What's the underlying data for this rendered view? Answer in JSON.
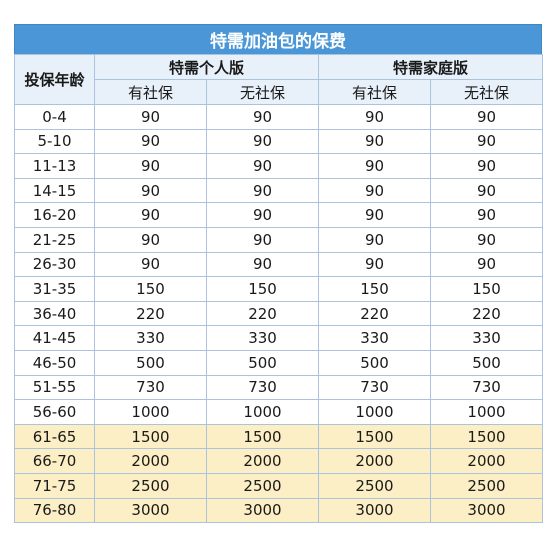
{
  "title": "特需加油包的保费",
  "header": {
    "age_label": "投保年龄",
    "group_personal": "特需个人版",
    "group_family": "特需家庭版",
    "with_social": "有社保",
    "without_social": "无社保"
  },
  "rows": [
    {
      "age": "0-4",
      "v": [
        "90",
        "90",
        "90",
        "90"
      ],
      "highlight": false
    },
    {
      "age": "5-10",
      "v": [
        "90",
        "90",
        "90",
        "90"
      ],
      "highlight": false
    },
    {
      "age": "11-13",
      "v": [
        "90",
        "90",
        "90",
        "90"
      ],
      "highlight": false
    },
    {
      "age": "14-15",
      "v": [
        "90",
        "90",
        "90",
        "90"
      ],
      "highlight": false
    },
    {
      "age": "16-20",
      "v": [
        "90",
        "90",
        "90",
        "90"
      ],
      "highlight": false
    },
    {
      "age": "21-25",
      "v": [
        "90",
        "90",
        "90",
        "90"
      ],
      "highlight": false
    },
    {
      "age": "26-30",
      "v": [
        "90",
        "90",
        "90",
        "90"
      ],
      "highlight": false
    },
    {
      "age": "31-35",
      "v": [
        "150",
        "150",
        "150",
        "150"
      ],
      "highlight": false
    },
    {
      "age": "36-40",
      "v": [
        "220",
        "220",
        "220",
        "220"
      ],
      "highlight": false
    },
    {
      "age": "41-45",
      "v": [
        "330",
        "330",
        "330",
        "330"
      ],
      "highlight": false
    },
    {
      "age": "46-50",
      "v": [
        "500",
        "500",
        "500",
        "500"
      ],
      "highlight": false
    },
    {
      "age": "51-55",
      "v": [
        "730",
        "730",
        "730",
        "730"
      ],
      "highlight": false
    },
    {
      "age": "56-60",
      "v": [
        "1000",
        "1000",
        "1000",
        "1000"
      ],
      "highlight": false
    },
    {
      "age": "61-65",
      "v": [
        "1500",
        "1500",
        "1500",
        "1500"
      ],
      "highlight": true
    },
    {
      "age": "66-70",
      "v": [
        "2000",
        "2000",
        "2000",
        "2000"
      ],
      "highlight": true
    },
    {
      "age": "71-75",
      "v": [
        "2500",
        "2500",
        "2500",
        "2500"
      ],
      "highlight": true
    },
    {
      "age": "76-80",
      "v": [
        "3000",
        "3000",
        "3000",
        "3000"
      ],
      "highlight": true
    }
  ],
  "colors": {
    "title_bg": "#4a96d6",
    "header_bg": "#e8f1fa",
    "highlight_bg": "#fcefc6",
    "border": "#a9c4dc"
  }
}
